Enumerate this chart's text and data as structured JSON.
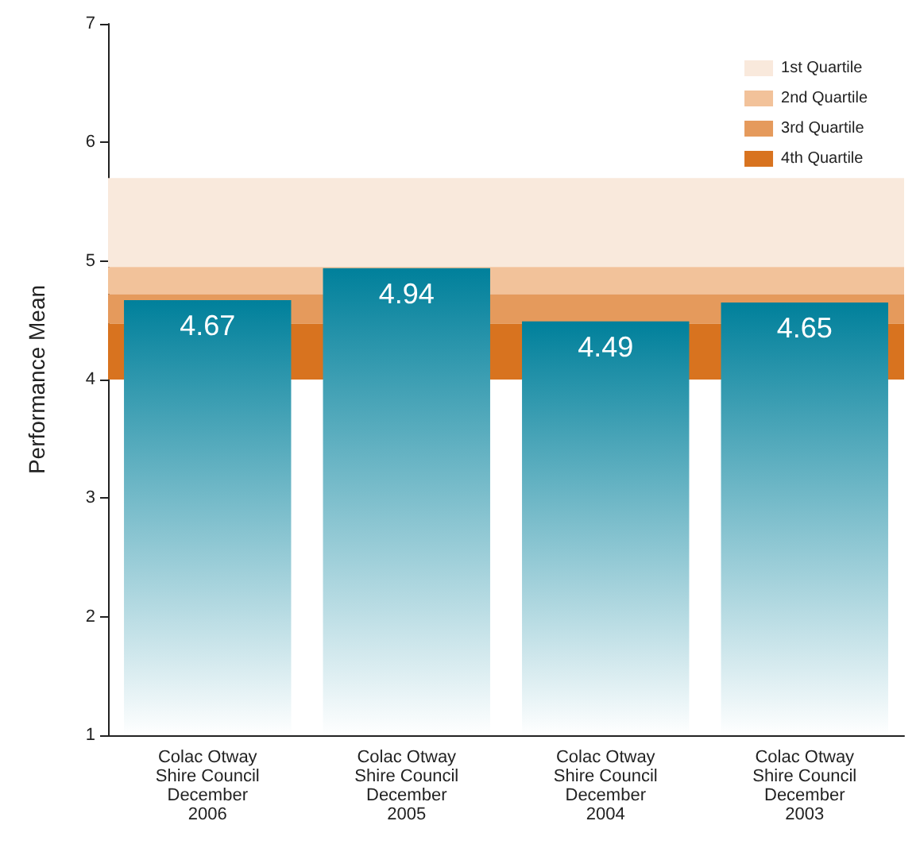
{
  "chart_data": {
    "type": "bar",
    "ylabel": "Performance Mean",
    "categories": [
      "Colac Otway\nShire Council\nDecember\n2006",
      "Colac Otway\nShire Council\nDecember\n2005",
      "Colac Otway\nShire Council\nDecember\n2004",
      "Colac Otway\nShire Council\nDecember\n2003"
    ],
    "values": [
      4.67,
      4.94,
      4.49,
      4.65
    ],
    "color": "#00809b",
    "data_labels": true,
    "ylim": [
      1,
      7
    ],
    "yticks": [
      1,
      2,
      3,
      4,
      5,
      6,
      7
    ],
    "grid": false,
    "legend": "top right",
    "bands": [
      {
        "axis": "y",
        "from": 4.95,
        "to": 5.7,
        "label": "1st Quartile",
        "color": "#f9e9dc"
      },
      {
        "axis": "y",
        "from": 4.72,
        "to": 4.95,
        "label": "2nd Quartile",
        "color": "#f2c29a"
      },
      {
        "axis": "y",
        "from": 4.47,
        "to": 4.72,
        "label": "3rd Quartile",
        "color": "#e59a5c"
      },
      {
        "axis": "y",
        "from": 4.0,
        "to": 4.47,
        "label": "4th Quartile",
        "color": "#d8731f"
      }
    ]
  }
}
